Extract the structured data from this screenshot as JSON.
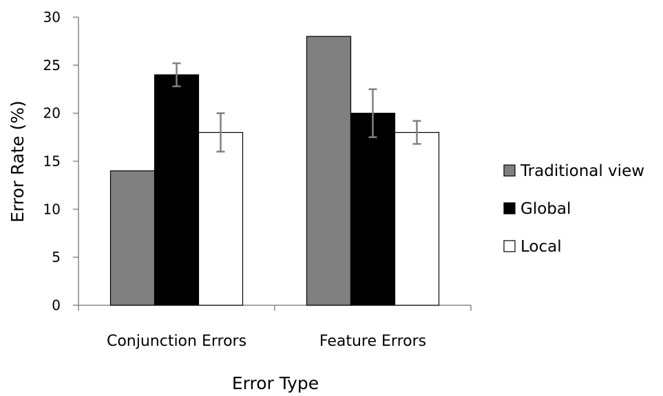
{
  "chart_data": {
    "type": "bar",
    "title": "",
    "xlabel": "Error Type",
    "ylabel": "Error Rate (%)",
    "ylim": [
      0,
      30
    ],
    "yticks": [
      0,
      5,
      10,
      15,
      20,
      25,
      30
    ],
    "grid": false,
    "legend": "right",
    "categories": [
      "Conjunction Errors",
      "Feature Errors"
    ],
    "series": [
      {
        "name": "Traditional view",
        "color": "#808080",
        "values": [
          14,
          28
        ],
        "errors": [
          null,
          null
        ]
      },
      {
        "name": "Global",
        "color": "#000000",
        "values": [
          24,
          20
        ],
        "errors": [
          1.2,
          2.5
        ]
      },
      {
        "name": "Local",
        "color": "#ffffff",
        "values": [
          18,
          18
        ],
        "errors": [
          2.0,
          1.2
        ]
      }
    ]
  }
}
